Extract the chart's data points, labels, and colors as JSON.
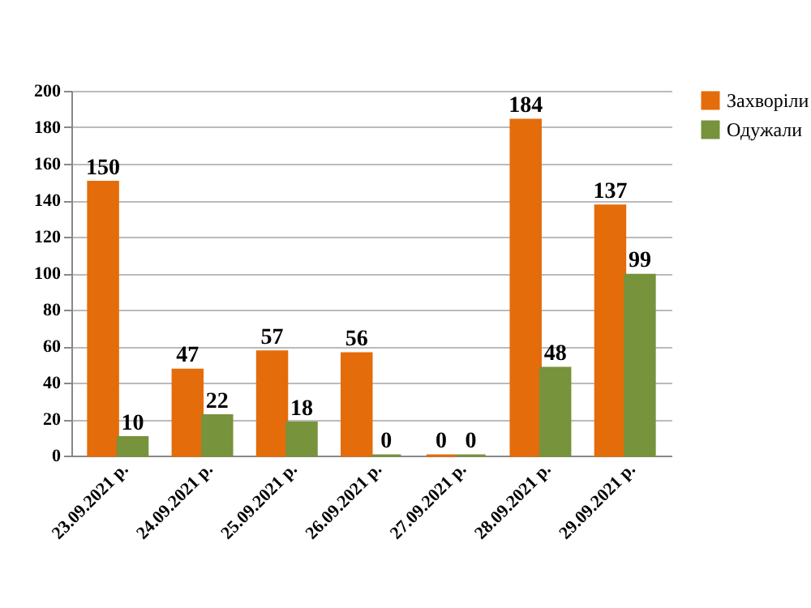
{
  "chart_data": {
    "type": "bar",
    "categories": [
      "23.09.2021 р.",
      "24.09.2021 р.",
      "25.09.2021 р.",
      "26.09.2021 р.",
      "27.09.2021 р.",
      "28.09.2021 р.",
      "29.09.2021 р."
    ],
    "series": [
      {
        "name": "Захворіли",
        "color": "#e46c0a",
        "values": [
          150,
          47,
          57,
          56,
          0,
          184,
          137
        ]
      },
      {
        "name": "Одужали",
        "color": "#77933c",
        "values": [
          10,
          22,
          18,
          0,
          0,
          48,
          99
        ]
      }
    ],
    "ylim": [
      0,
      200
    ],
    "yticks": [
      0,
      20,
      40,
      60,
      80,
      100,
      120,
      140,
      160,
      180,
      200
    ],
    "grid": "y",
    "legend": "right",
    "data_labels": true
  }
}
